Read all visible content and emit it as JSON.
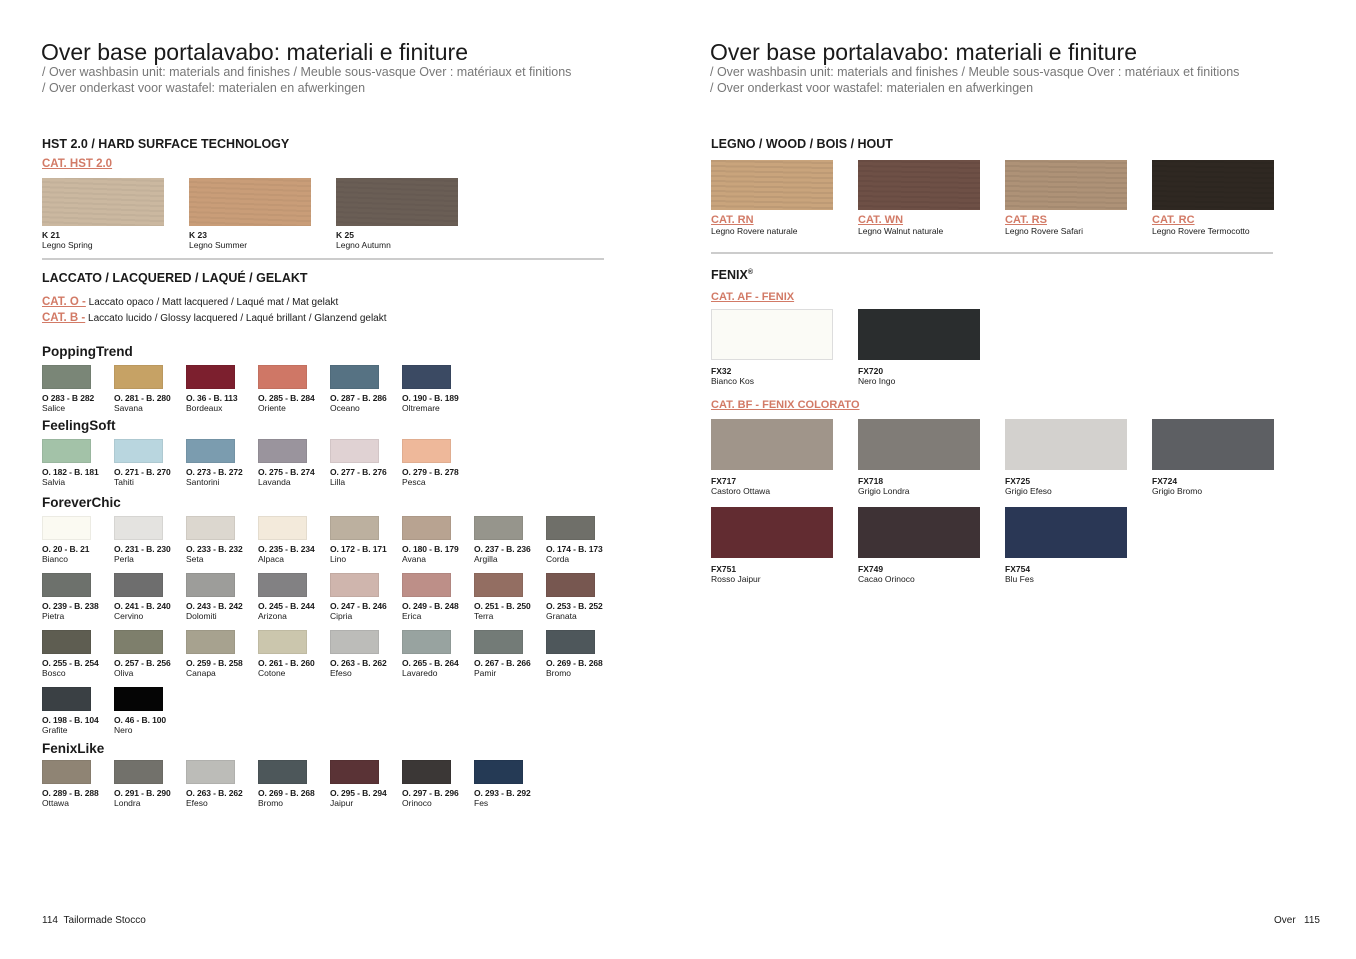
{
  "left": {
    "title": "Over base portalavabo: materiali e finiture",
    "subtitle1": "/ Over washbasin unit: materials and finishes / Meuble sous-vasque Over : matériaux et finitions",
    "subtitle2": "/ Over onderkast voor wastafel: materialen en afwerkingen",
    "hst": {
      "heading": "HST 2.0 / HARD SURFACE TECHNOLOGY",
      "cat": "CAT. HST 2.0",
      "items": [
        {
          "code": "K 21",
          "name": "Legno Spring",
          "color": "#cbb8a0"
        },
        {
          "code": "K 23",
          "name": "Legno Summer",
          "color": "#c99d78"
        },
        {
          "code": "K 25",
          "name": "Legno Autumn",
          "color": "#6a5e55"
        }
      ]
    },
    "laccato": {
      "heading": "LACCATO / LACQUERED / LAQUÉ / GELAKT",
      "cat_o": "CAT. O -",
      "cat_o_text": "Laccato opaco / Matt lacquered / Laqué mat / Mat gelakt",
      "cat_b": "CAT. B -",
      "cat_b_text": "Laccato lucido / Glossy lacquered / Laqué brillant / Glanzend gelakt"
    },
    "groups": [
      {
        "name": "PoppingTrend",
        "items": [
          {
            "code": "O 283 - B 282",
            "name": "Salice",
            "color": "#7a8677"
          },
          {
            "code": "O. 281 - B. 280",
            "name": "Savana",
            "color": "#c6a265"
          },
          {
            "code": "O. 36 - B. 113",
            "name": "Bordeaux",
            "color": "#7c1f2e"
          },
          {
            "code": "O. 285 - B. 284",
            "name": "Oriente",
            "color": "#cf7766"
          },
          {
            "code": "O. 287 - B. 286",
            "name": "Oceano",
            "color": "#567283"
          },
          {
            "code": "O. 190 - B. 189",
            "name": "Oltremare",
            "color": "#3b4a63"
          }
        ]
      },
      {
        "name": "FeelingSoft",
        "items": [
          {
            "code": "O. 182 - B. 181",
            "name": "Salvia",
            "color": "#a3c2a8"
          },
          {
            "code": "O. 271 - B. 270",
            "name": "Tahiti",
            "color": "#b9d6df"
          },
          {
            "code": "O. 273 - B. 272",
            "name": "Santorini",
            "color": "#7b9caf"
          },
          {
            "code": "O. 275 - B. 274",
            "name": "Lavanda",
            "color": "#9a949d"
          },
          {
            "code": "O. 277 - B. 276",
            "name": "Lilla",
            "color": "#e0d2d3"
          },
          {
            "code": "O. 279 - B. 278",
            "name": "Pesca",
            "color": "#eeb89a"
          }
        ]
      },
      {
        "name": "ForeverChic",
        "items": [
          {
            "code": "O. 20 - B. 21",
            "name": "Bianco",
            "color": "#fbfaf2"
          },
          {
            "code": "O. 231 - B. 230",
            "name": "Perla",
            "color": "#e4e3e0"
          },
          {
            "code": "O. 233 - B. 232",
            "name": "Seta",
            "color": "#dcd7cf"
          },
          {
            "code": "O. 235 - B. 234",
            "name": "Alpaca",
            "color": "#f3eadb"
          },
          {
            "code": "O. 172 - B. 171",
            "name": "Lino",
            "color": "#bcb09f"
          },
          {
            "code": "O. 180 - B. 179",
            "name": "Avana",
            "color": "#b8a391"
          },
          {
            "code": "O. 237 - B. 236",
            "name": "Argilla",
            "color": "#96958c"
          },
          {
            "code": "O. 174 - B. 173",
            "name": "Corda",
            "color": "#6f6f69"
          },
          {
            "code": "O. 239 - B. 238",
            "name": "Pietra",
            "color": "#6d716c"
          },
          {
            "code": "O. 241 - B. 240",
            "name": "Cervino",
            "color": "#6e6e6e"
          },
          {
            "code": "O. 243 - B. 242",
            "name": "Dolomiti",
            "color": "#9d9d9a"
          },
          {
            "code": "O. 245 - B. 244",
            "name": "Arizona",
            "color": "#828183"
          },
          {
            "code": "O. 247 - B. 246",
            "name": "Cipria",
            "color": "#cfb5ad"
          },
          {
            "code": "O. 249 - B. 248",
            "name": "Erica",
            "color": "#bd8f88"
          },
          {
            "code": "O. 251 - B. 250",
            "name": "Terra",
            "color": "#936e62"
          },
          {
            "code": "O. 253 - B. 252",
            "name": "Granata",
            "color": "#775750"
          },
          {
            "code": "O. 255 - B. 254",
            "name": "Bosco",
            "color": "#5e5d51"
          },
          {
            "code": "O. 257 - B. 256",
            "name": "Oliva",
            "color": "#7e7f6c"
          },
          {
            "code": "O. 259 - B. 258",
            "name": "Canapa",
            "color": "#a7a28f"
          },
          {
            "code": "O. 261 - B. 260",
            "name": "Cotone",
            "color": "#cbc6ad"
          },
          {
            "code": "O. 263 - B. 262",
            "name": "Efeso",
            "color": "#bcbcb9"
          },
          {
            "code": "O. 265 - B. 264",
            "name": "Lavaredo",
            "color": "#98a3a0"
          },
          {
            "code": "O. 267 - B. 266",
            "name": "Pamir",
            "color": "#737b77"
          },
          {
            "code": "O. 269 - B. 268",
            "name": "Bromo",
            "color": "#4e575b"
          },
          {
            "code": "O. 198 - B. 104",
            "name": "Grafite",
            "color": "#3a4044"
          },
          {
            "code": "O. 46 - B. 100",
            "name": "Nero",
            "color": "#050505"
          }
        ]
      },
      {
        "name": "FenixLike",
        "items": [
          {
            "code": "O. 289 - B. 288",
            "name": "Ottawa",
            "color": "#8f8474"
          },
          {
            "code": "O. 291 - B. 290",
            "name": "Londra",
            "color": "#72716b"
          },
          {
            "code": "O. 263 - B. 262",
            "name": "Efeso",
            "color": "#bcbcb8"
          },
          {
            "code": "O. 269 - B. 268",
            "name": "Bromo",
            "color": "#4d575a"
          },
          {
            "code": "O. 295 - B. 294",
            "name": "Jaipur",
            "color": "#5a3336"
          },
          {
            "code": "O. 297 - B. 296",
            "name": "Orinoco",
            "color": "#3b3736"
          },
          {
            "code": "O. 293 - B. 292",
            "name": "Fes",
            "color": "#253a55"
          }
        ]
      }
    ],
    "footer": {
      "page": "114",
      "brand": "Tailormade Stocco"
    }
  },
  "right": {
    "title": "Over base portalavabo: materiali e finiture",
    "subtitle1": "/ Over washbasin unit: materials and finishes / Meuble sous-vasque Over : matériaux et finitions",
    "subtitle2": "/ Over onderkast voor wastafel: materialen en afwerkingen",
    "legno": {
      "heading": "LEGNO / WOOD / BOIS / HOUT",
      "items": [
        {
          "cat": "CAT. RN",
          "name": "Legno Rovere naturale",
          "color": "#c9a47c"
        },
        {
          "cat": "CAT. WN",
          "name": "Legno Walnut naturale",
          "color": "#6e5046"
        },
        {
          "cat": "CAT. RS",
          "name": "Legno Rovere Safari",
          "color": "#ae9277"
        },
        {
          "cat": "CAT. RC",
          "name": "Legno Rovere Termocotto",
          "color": "#2f2822"
        }
      ]
    },
    "fenix": {
      "heading": "FENIX",
      "reg": "®",
      "cat_af": "CAT. AF - FENIX",
      "af_items": [
        {
          "code": "FX32",
          "name": "Bianco Kos",
          "color": "#fbfbf6"
        },
        {
          "code": "FX720",
          "name": "Nero Ingo",
          "color": "#2a2d2e"
        }
      ],
      "cat_bf": "CAT. BF - FENIX COLORATO",
      "bf_items": [
        {
          "code": "FX717",
          "name": "Castoro Ottawa",
          "color": "#a0958a"
        },
        {
          "code": "FX718",
          "name": "Grigio Londra",
          "color": "#807c77"
        },
        {
          "code": "FX725",
          "name": "Grigio Efeso",
          "color": "#d3d1ce"
        },
        {
          "code": "FX724",
          "name": "Grigio Bromo",
          "color": "#5d5f63"
        },
        {
          "code": "FX751",
          "name": "Rosso Jaipur",
          "color": "#622c31"
        },
        {
          "code": "FX749",
          "name": "Cacao Orinoco",
          "color": "#3e3235"
        },
        {
          "code": "FX754",
          "name": "Blu Fes",
          "color": "#2a3755"
        }
      ]
    },
    "footer": {
      "name": "Over",
      "page": "115"
    }
  }
}
